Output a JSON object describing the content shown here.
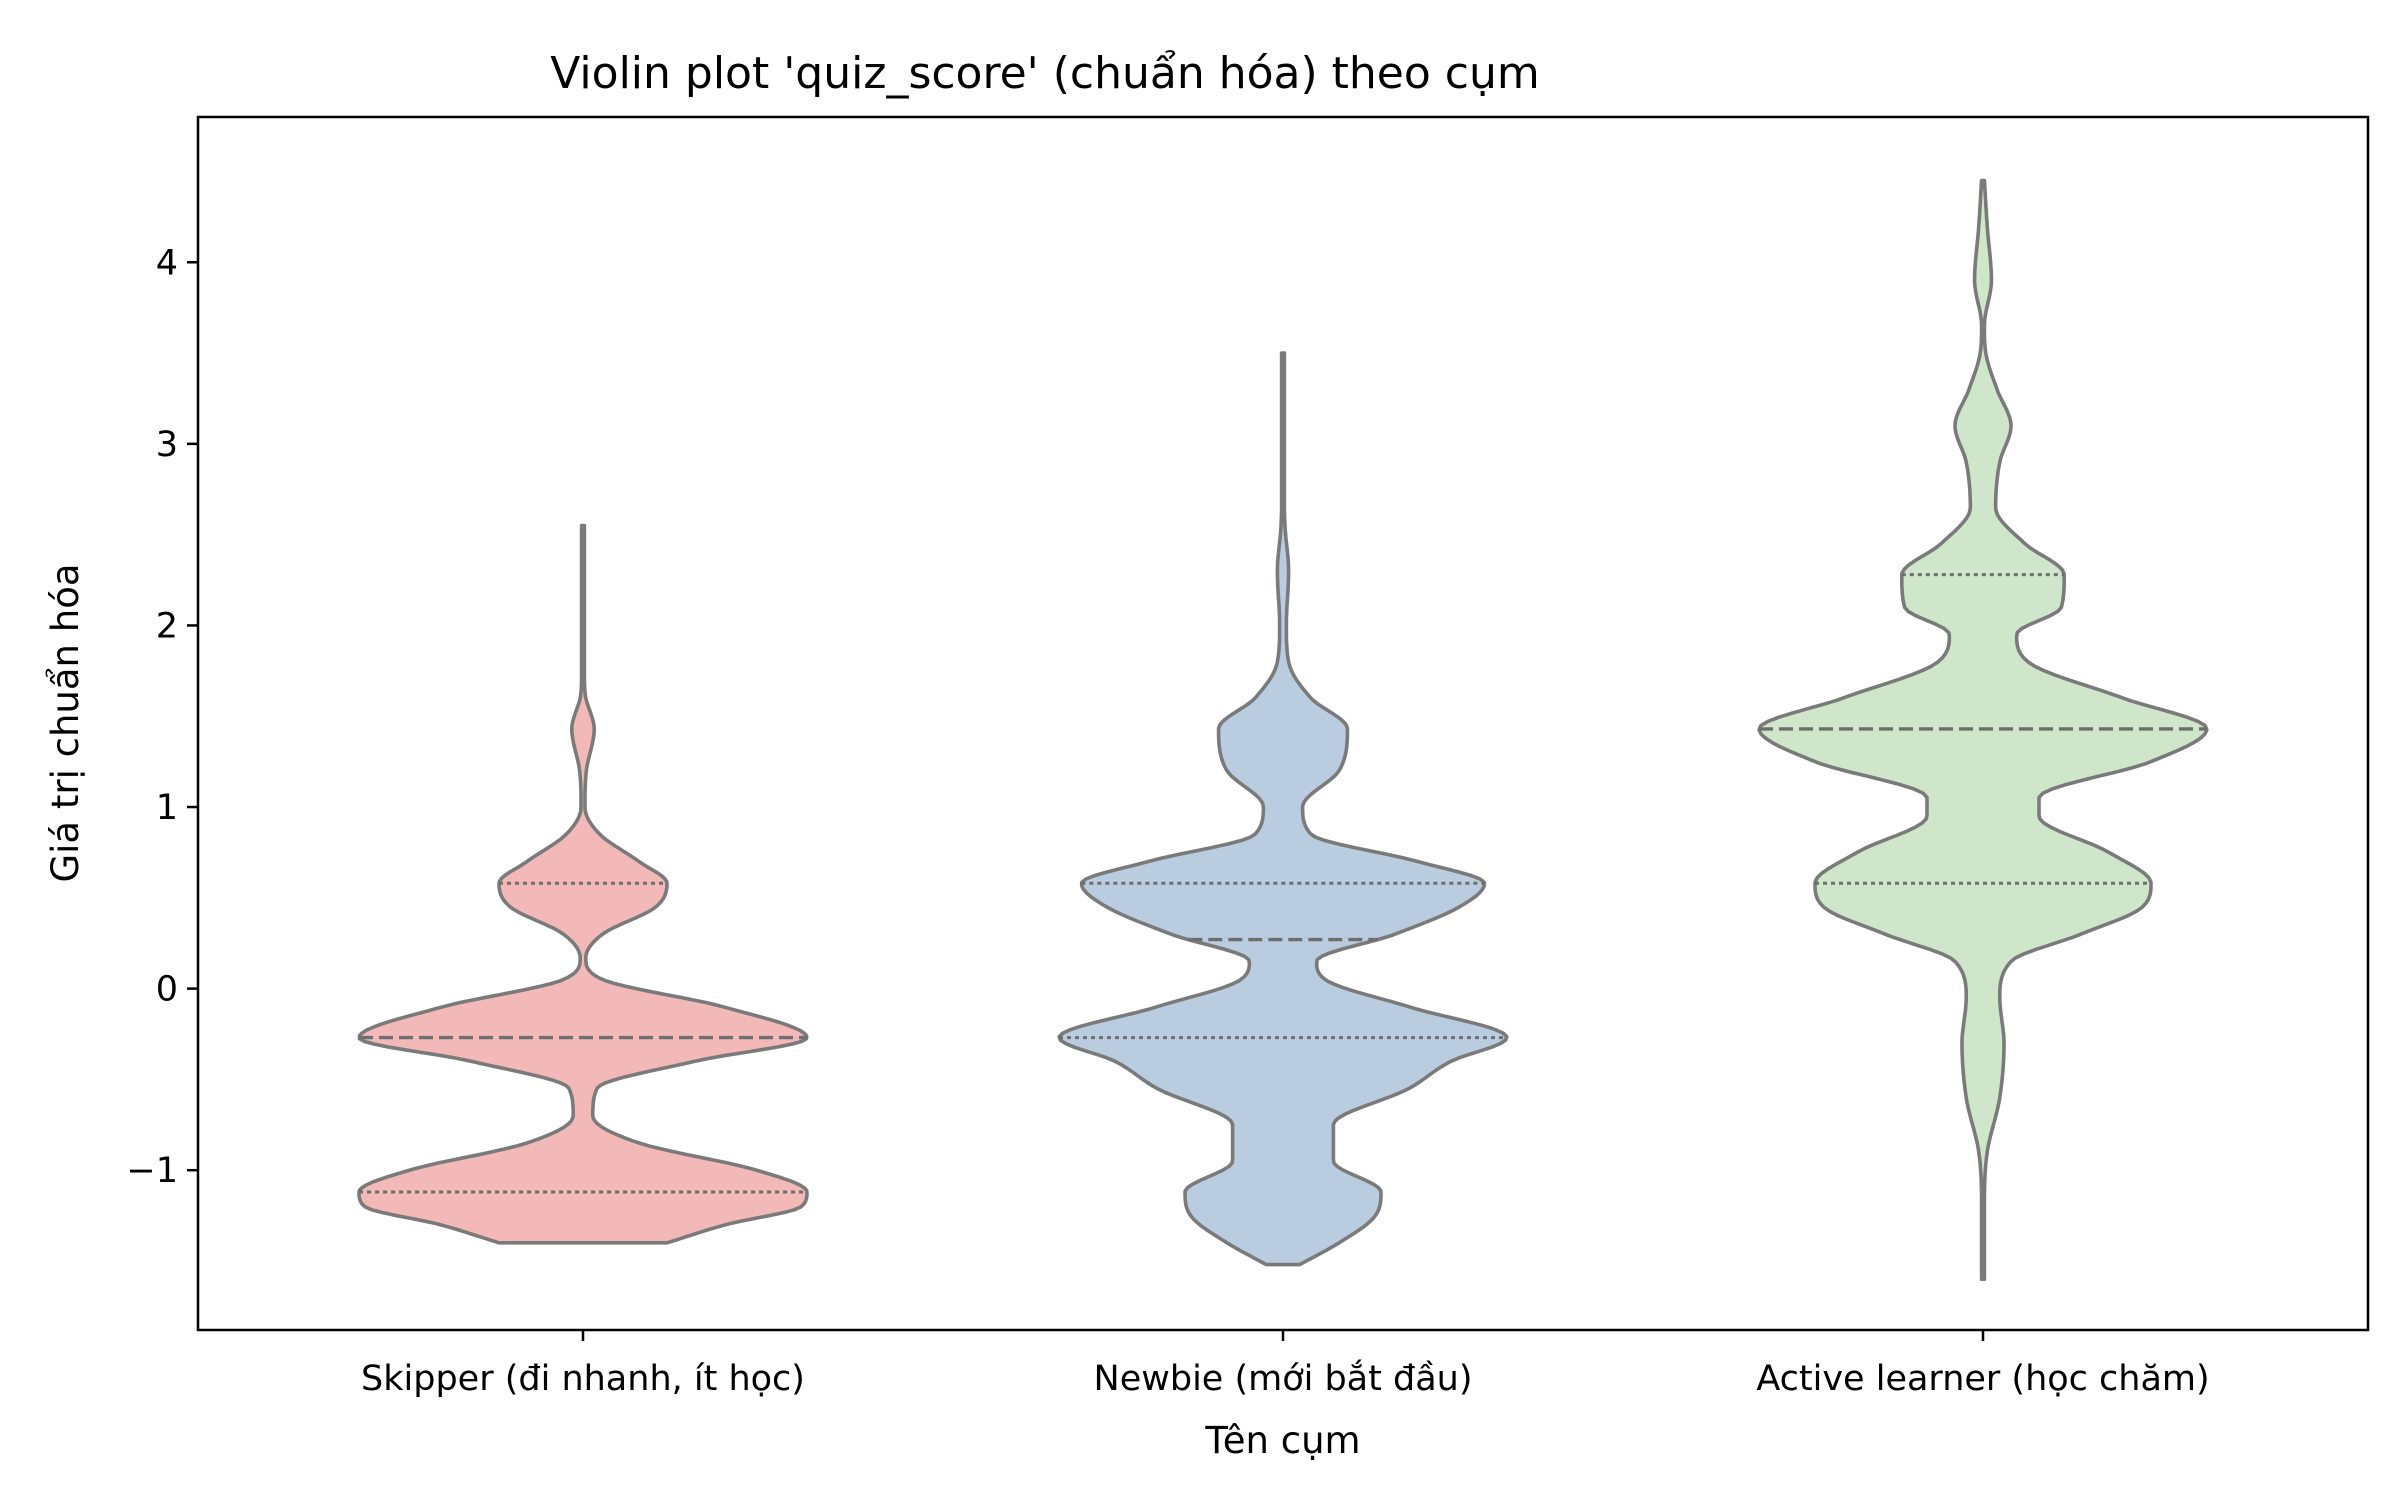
{
  "chart_data": {
    "type": "violin",
    "title": "Violin plot 'quiz_score' (chuẩn hóa) theo cụm",
    "xlabel": "Tên cụm",
    "ylabel": "Giá trị chuẩn hóa",
    "ylim": [
      -1.88,
      4.8
    ],
    "yticks": [
      -1,
      0,
      1,
      2,
      3,
      4
    ],
    "ytick_labels": [
      "−1",
      "0",
      "1",
      "2",
      "3",
      "4"
    ],
    "grid": false,
    "inner": "quartile",
    "edge_color": "#7a7a7a",
    "categories": [
      "Skipper (đi nhanh, ít học)",
      "Newbie (mới bắt đầu)",
      "Active learner (học chăm)"
    ],
    "series": [
      {
        "color": "#f2b9b8",
        "quartiles": [
          -1.12,
          -0.27,
          0.58
        ],
        "density": [
          [
            -1.4,
            0.3
          ],
          [
            -1.3,
            0.51
          ],
          [
            -1.2,
            0.78
          ],
          [
            -1.12,
            0.8
          ],
          [
            -1.0,
            0.62
          ],
          [
            -0.85,
            0.2
          ],
          [
            -0.7,
            0.035
          ],
          [
            -0.55,
            0.05
          ],
          [
            -0.4,
            0.4
          ],
          [
            -0.27,
            0.8
          ],
          [
            -0.1,
            0.5
          ],
          [
            0.05,
            0.07
          ],
          [
            0.17,
            0.01
          ],
          [
            0.3,
            0.07
          ],
          [
            0.45,
            0.26
          ],
          [
            0.58,
            0.3
          ],
          [
            0.7,
            0.2
          ],
          [
            0.85,
            0.06
          ],
          [
            1.0,
            0.007
          ],
          [
            1.2,
            0.012
          ],
          [
            1.43,
            0.04
          ],
          [
            1.62,
            0.008
          ],
          [
            1.8,
            0.004
          ],
          [
            2.2,
            0.003
          ],
          [
            2.55,
            0.002
          ]
        ]
      },
      {
        "color": "#b9cce0",
        "quartiles": [
          -0.27,
          0.27,
          0.58
        ],
        "density": [
          [
            -1.52,
            0.06
          ],
          [
            -1.4,
            0.2
          ],
          [
            -1.25,
            0.33
          ],
          [
            -1.12,
            0.35
          ],
          [
            -0.95,
            0.18
          ],
          [
            -0.75,
            0.18
          ],
          [
            -0.55,
            0.45
          ],
          [
            -0.4,
            0.6
          ],
          [
            -0.27,
            0.8
          ],
          [
            -0.1,
            0.45
          ],
          [
            0.05,
            0.15
          ],
          [
            0.15,
            0.12
          ],
          [
            0.3,
            0.4
          ],
          [
            0.45,
            0.63
          ],
          [
            0.58,
            0.72
          ],
          [
            0.7,
            0.48
          ],
          [
            0.85,
            0.1
          ],
          [
            1.0,
            0.07
          ],
          [
            1.2,
            0.2
          ],
          [
            1.43,
            0.23
          ],
          [
            1.6,
            0.1
          ],
          [
            1.8,
            0.02
          ],
          [
            2.0,
            0.012
          ],
          [
            2.3,
            0.02
          ],
          [
            2.55,
            0.007
          ],
          [
            3.0,
            0.002
          ],
          [
            3.5,
            0.002
          ]
        ]
      },
      {
        "color": "#cfe6cb",
        "quartiles": [
          0.58,
          1.43,
          2.28
        ],
        "density": [
          [
            -1.6,
            0.002
          ],
          [
            -1.2,
            0.004
          ],
          [
            -0.9,
            0.015
          ],
          [
            -0.6,
            0.06
          ],
          [
            -0.3,
            0.075
          ],
          [
            -0.05,
            0.06
          ],
          [
            0.15,
            0.1
          ],
          [
            0.3,
            0.35
          ],
          [
            0.45,
            0.57
          ],
          [
            0.58,
            0.6
          ],
          [
            0.75,
            0.45
          ],
          [
            0.95,
            0.2
          ],
          [
            1.05,
            0.2
          ],
          [
            1.25,
            0.6
          ],
          [
            1.43,
            0.8
          ],
          [
            1.6,
            0.5
          ],
          [
            1.8,
            0.16
          ],
          [
            1.95,
            0.12
          ],
          [
            2.1,
            0.28
          ],
          [
            2.28,
            0.29
          ],
          [
            2.45,
            0.15
          ],
          [
            2.65,
            0.045
          ],
          [
            2.9,
            0.06
          ],
          [
            3.1,
            0.1
          ],
          [
            3.3,
            0.05
          ],
          [
            3.5,
            0.01
          ],
          [
            3.65,
            0.005
          ],
          [
            3.9,
            0.03
          ],
          [
            4.2,
            0.015
          ],
          [
            4.45,
            0.005
          ]
        ]
      }
    ]
  }
}
